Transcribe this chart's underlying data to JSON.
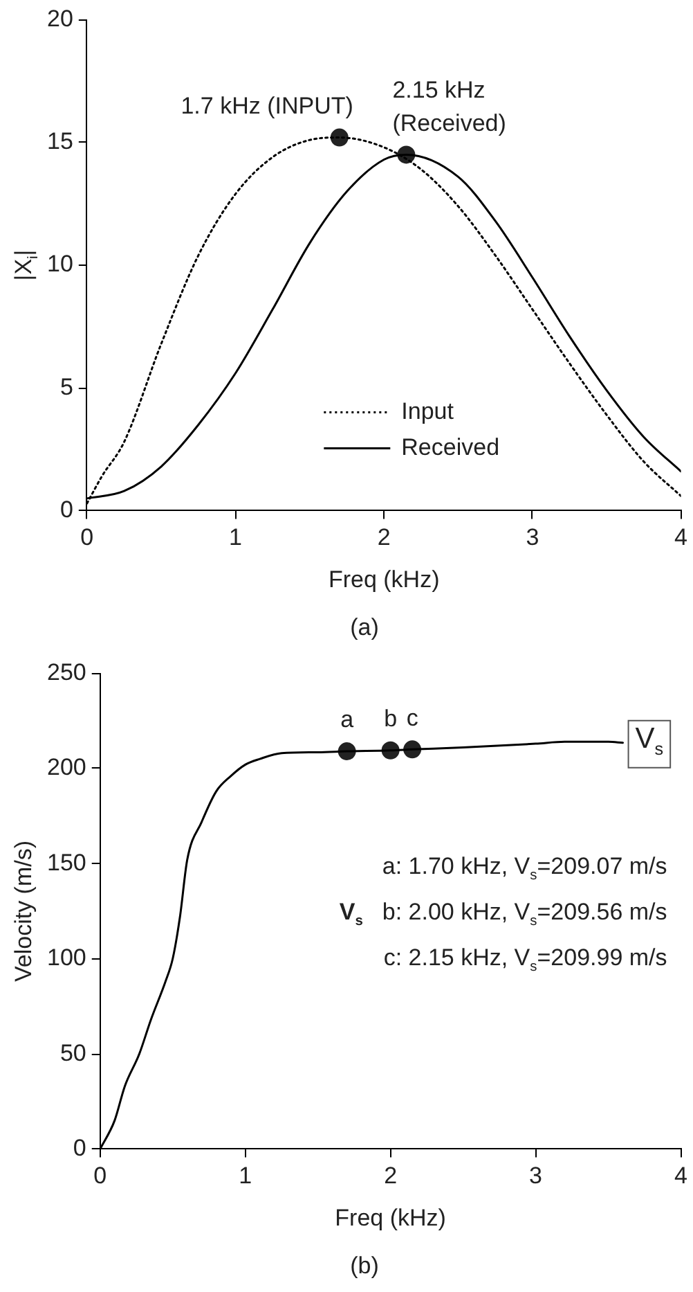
{
  "chart_data": [
    {
      "type": "line",
      "title": "(a)",
      "xlabel": "Freq (kHz)",
      "ylabel": "|X$_{i}$|",
      "xlim": [
        0,
        4
      ],
      "xticks": [
        0,
        1,
        2,
        3,
        4
      ],
      "ylim": [
        0,
        20
      ],
      "yticks": [
        0,
        5,
        10,
        15,
        20
      ],
      "legend": "bottom",
      "series": [
        {
          "name": "Input",
          "color": "#000000",
          "line_style": "dotted",
          "marker": "none",
          "x": [
            0,
            0.1,
            0.25,
            0.5,
            0.75,
            1,
            1.25,
            1.5,
            1.7,
            2,
            2.25,
            2.5,
            2.75,
            3,
            3.25,
            3.5,
            3.75,
            4
          ],
          "values": [
            0.3,
            1.4,
            2.8,
            6.8,
            10.4,
            12.9,
            14.4,
            15.1,
            15.2,
            14.8,
            13.9,
            12.4,
            10.4,
            8.2,
            6.0,
            3.9,
            2.0,
            0.6
          ]
        },
        {
          "name": "Received",
          "color": "#000000",
          "line_style": "solid",
          "marker": "none",
          "x": [
            0,
            0.25,
            0.5,
            0.75,
            1,
            1.25,
            1.5,
            1.75,
            2,
            2.15,
            2.5,
            2.75,
            3,
            3.25,
            3.5,
            3.75,
            4
          ],
          "values": [
            0.5,
            0.8,
            1.8,
            3.5,
            5.6,
            8.2,
            10.9,
            13.0,
            14.3,
            14.5,
            13.6,
            11.8,
            9.5,
            7.1,
            4.9,
            3.0,
            1.6
          ]
        },
        {
          "type": "scatter",
          "color": "#222222",
          "marker": "circle",
          "x": [
            1.7,
            2.15
          ],
          "values": [
            15.2,
            14.5
          ]
        }
      ],
      "annotations": [
        {
          "text": "1.7 kHz (INPUT)",
          "x": 1.7,
          "y": 15.2
        },
        {
          "text": "2.15 kHz\n(Received)",
          "x": 2.15,
          "y": 14.5
        }
      ]
    },
    {
      "type": "line",
      "title": "(b)",
      "xlabel": "Freq (kHz)",
      "ylabel": "Velocity (m/s)",
      "xlim": [
        0,
        4
      ],
      "xticks": [
        0,
        1,
        2,
        3,
        4
      ],
      "ylim": [
        0,
        250
      ],
      "yticks": [
        0,
        50,
        100,
        150,
        200,
        250
      ],
      "series": [
        {
          "name": "V$_{s}$",
          "color": "#000000",
          "line_style": "solid",
          "marker": "none",
          "x": [
            0,
            0.1,
            0.17,
            0.27,
            0.35,
            0.45,
            0.5,
            0.55,
            0.6,
            0.7,
            0.8,
            0.9,
            1.0,
            1.1,
            1.25,
            1.5,
            1.7,
            2.0,
            2.15,
            2.5,
            3.0,
            3.2,
            3.5,
            3.6
          ],
          "values": [
            0,
            15,
            33,
            50,
            68,
            88,
            100,
            122,
            152,
            172,
            188,
            196,
            202,
            205,
            208,
            208.5,
            209,
            209.5,
            210,
            211,
            213,
            214,
            214,
            213.5
          ]
        },
        {
          "type": "scatter",
          "color": "#222222",
          "marker": "circle",
          "x": [
            1.7,
            2.0,
            2.15
          ],
          "values": [
            209,
            209.5,
            210
          ]
        }
      ],
      "annotations": [
        {
          "text": "a",
          "x": 1.7,
          "y": 209
        },
        {
          "text": "b",
          "x": 2.0,
          "y": 209.5
        },
        {
          "text": "c",
          "x": 2.15,
          "y": 210
        },
        "V$_{s}$",
        "a: 1.70 kHz, V$_{s}$=209.07 m/s",
        "b: 2.00 kHz, V$_{s}$=209.56 m/s",
        "c: 2.15 kHz, V$_{s}$=209.99 m/s"
      ]
    }
  ]
}
